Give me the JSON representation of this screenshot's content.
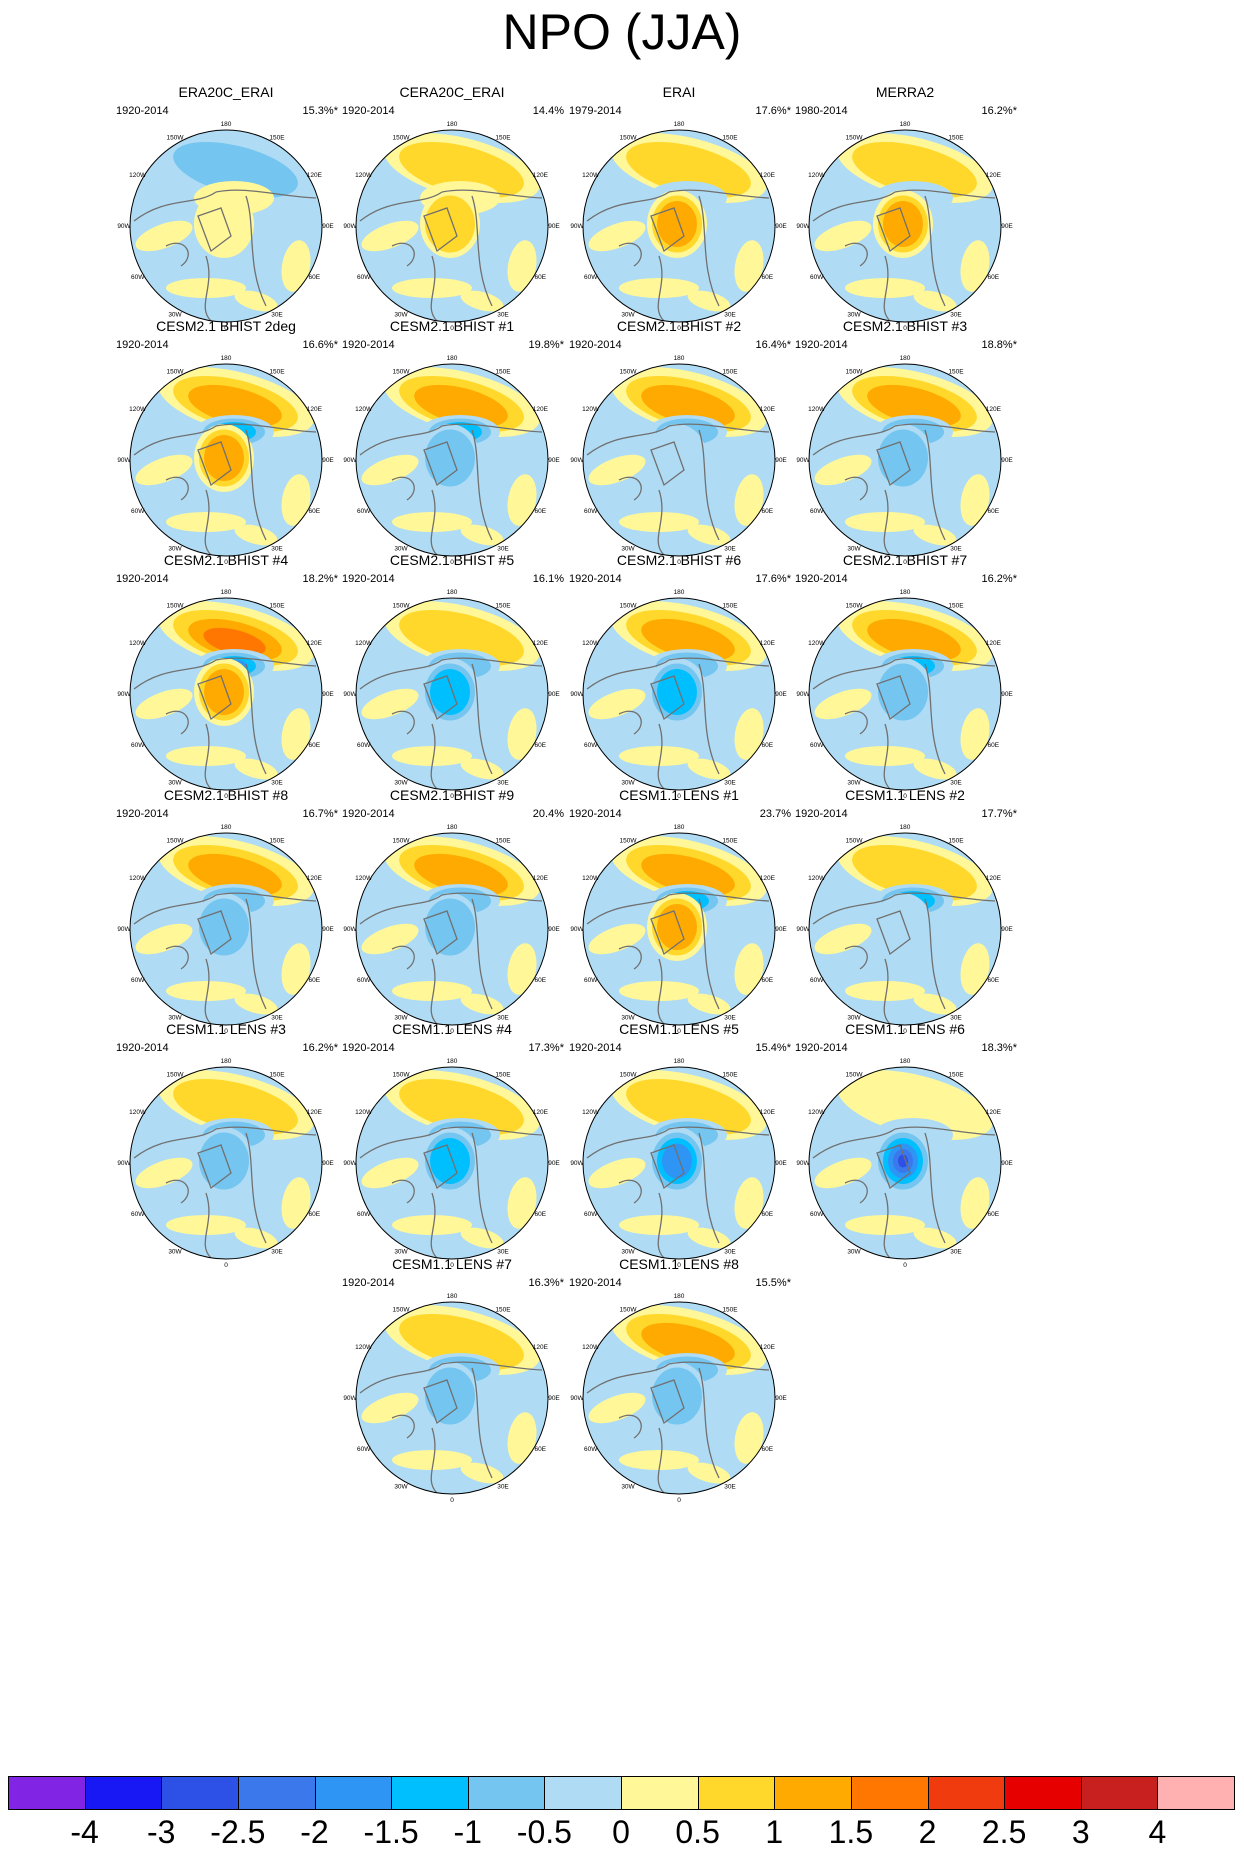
{
  "title": "NPO (JJA)",
  "panels": [
    {
      "name": "ERA20C_ERAI",
      "period": "1920-2014",
      "percent": "15.3%*",
      "v": [
        -0.6,
        0.2,
        0.4
      ]
    },
    {
      "name": "CERA20C_ERAI",
      "period": "1920-2014",
      "percent": "14.4%",
      "v": [
        0.7,
        0.2,
        0.6
      ]
    },
    {
      "name": "ERAI",
      "period": "1979-2014",
      "percent": "17.6%*",
      "v": [
        0.7,
        -0.5,
        1.1
      ]
    },
    {
      "name": "MERRA2",
      "period": "1980-2014",
      "percent": "16.2%*",
      "v": [
        0.8,
        -0.5,
        1.1
      ]
    },
    {
      "name": "CESM2.1 BHIST 2deg",
      "period": "1920-2014",
      "percent": "16.6%*",
      "v": [
        1.2,
        -1.2,
        1.1
      ]
    },
    {
      "name": "CESM2.1 BHIST #1",
      "period": "1920-2014",
      "percent": "19.8%*",
      "v": [
        1.3,
        -1.1,
        -0.8
      ]
    },
    {
      "name": "CESM2.1 BHIST #2",
      "period": "1920-2014",
      "percent": "16.4%*",
      "v": [
        1.1,
        -1.0,
        -0.4
      ]
    },
    {
      "name": "CESM2.1 BHIST #3",
      "period": "1920-2014",
      "percent": "18.8%*",
      "v": [
        1.2,
        -0.8,
        -0.6
      ]
    },
    {
      "name": "CESM2.1 BHIST #4",
      "period": "1920-2014",
      "percent": "18.2%*",
      "v": [
        1.6,
        -1.6,
        1.2
      ]
    },
    {
      "name": "CESM2.1 BHIST #5",
      "period": "1920-2014",
      "percent": "16.1%",
      "v": [
        0.9,
        -0.9,
        -1.2
      ]
    },
    {
      "name": "CESM2.1 BHIST #6",
      "period": "1920-2014",
      "percent": "17.6%*",
      "v": [
        1.0,
        -1.0,
        -1.3
      ]
    },
    {
      "name": "CESM2.1 BHIST #7",
      "period": "1920-2014",
      "percent": "16.2%*",
      "v": [
        1.1,
        -1.4,
        -1.0
      ]
    },
    {
      "name": "CESM2.1 BHIST #8",
      "period": "1920-2014",
      "percent": "16.7%*",
      "v": [
        1.2,
        -0.7,
        -0.6
      ]
    },
    {
      "name": "CESM2.1 BHIST #9",
      "period": "1920-2014",
      "percent": "20.4%",
      "v": [
        1.4,
        -0.9,
        -1.0
      ]
    },
    {
      "name": "CESM1.1 LENS #1",
      "period": "1920-2014",
      "percent": "23.7%",
      "v": [
        1.1,
        -1.2,
        1.4
      ]
    },
    {
      "name": "CESM1.1 LENS #2",
      "period": "1920-2014",
      "percent": "17.7%*",
      "v": [
        0.8,
        -1.3,
        -0.5
      ]
    },
    {
      "name": "CESM1.1 LENS #3",
      "period": "1920-2014",
      "percent": "16.2%*",
      "v": [
        0.6,
        -0.8,
        -1.0
      ]
    },
    {
      "name": "CESM1.1 LENS #4",
      "period": "1920-2014",
      "percent": "17.3%*",
      "v": [
        0.8,
        -0.8,
        -1.2
      ]
    },
    {
      "name": "CESM1.1 LENS #5",
      "period": "1920-2014",
      "percent": "15.4%*",
      "v": [
        0.6,
        -1.0,
        -1.8
      ]
    },
    {
      "name": "CESM1.1 LENS #6",
      "period": "1920-2014",
      "percent": "18.3%*",
      "v": [
        0.4,
        -0.4,
        -2.6
      ]
    },
    {
      "name": "CESM1.1 LENS #7",
      "period": "1920-2014",
      "percent": "16.3%*",
      "v": [
        0.8,
        -1.0,
        -0.9
      ]
    },
    {
      "name": "CESM1.1 LENS #8",
      "period": "1920-2014",
      "percent": "15.5%*",
      "v": [
        1.0,
        -0.9,
        -0.6
      ]
    }
  ],
  "longitude_labels": [
    "180",
    "150W",
    "150E",
    "120W",
    "120E",
    "90W",
    "90E",
    "60W",
    "60E",
    "30W",
    "30E",
    "0"
  ],
  "colorbar": {
    "labels": [
      "-4",
      "-3",
      "-2.5",
      "-2",
      "-1.5",
      "-1",
      "-0.5",
      "0",
      "0.5",
      "1",
      "1.5",
      "2",
      "2.5",
      "3",
      "4"
    ],
    "colors": [
      "#8224e3",
      "#1818f5",
      "#2d50e6",
      "#3b78ec",
      "#2f95f5",
      "#00bfff",
      "#74c5f0",
      "#afdcf4",
      "#fff798",
      "#ffd82b",
      "#ffaa00",
      "#ff7700",
      "#f03b0f",
      "#e70000",
      "#c81f1f",
      "#ffb0b0"
    ]
  }
}
